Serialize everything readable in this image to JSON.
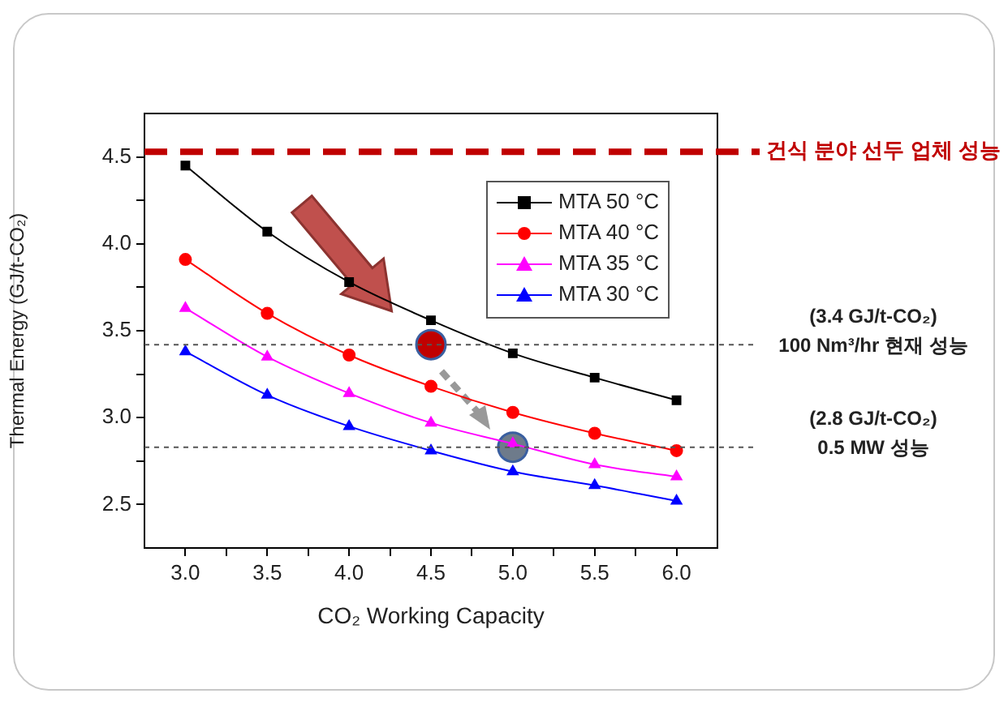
{
  "chart_data": {
    "type": "line",
    "xlabel": "CO₂ Working Capacity",
    "ylabel": "Thermal Energy (GJ/t-CO₂)",
    "x": [
      3.0,
      3.5,
      4.0,
      4.5,
      5.0,
      5.5,
      6.0
    ],
    "series": [
      {
        "name": "MTA 50 °C",
        "color": "#000000",
        "marker": "square",
        "values": [
          4.45,
          4.07,
          3.78,
          3.56,
          3.37,
          3.23,
          3.1
        ]
      },
      {
        "name": "MTA 40 °C",
        "color": "#ff0000",
        "marker": "circle",
        "values": [
          3.91,
          3.6,
          3.36,
          3.18,
          3.03,
          2.91,
          2.81
        ]
      },
      {
        "name": "MTA 35 °C",
        "color": "#ff00ff",
        "marker": "triangle",
        "values": [
          3.63,
          3.35,
          3.14,
          2.97,
          2.85,
          2.73,
          2.66
        ]
      },
      {
        "name": "MTA 30 °C",
        "color": "#0000ff",
        "marker": "triangle",
        "values": [
          3.38,
          3.13,
          2.95,
          2.81,
          2.69,
          2.61,
          2.52
        ]
      },
      {
        "type": "scatter",
        "x": [
          4.5,
          5.0
        ],
        "values": [
          3.42,
          2.83
        ],
        "colors": [
          "#c00000",
          "#6e7b8b"
        ],
        "marker": "circle"
      }
    ],
    "xlim": [
      2.75,
      6.25
    ],
    "xticks": [
      {
        "value": 3.0,
        "label": "3.0"
      },
      {
        "value": 3.25,
        "label": null
      },
      3.5,
      {
        "value": 3.75,
        "label": null
      },
      {
        "value": 4.0,
        "label": "4.0"
      },
      {
        "value": 4.25,
        "label": null
      },
      4.5,
      {
        "value": 4.75,
        "label": null
      },
      {
        "value": 5.0,
        "label": "5.0"
      },
      {
        "value": 5.25,
        "label": null
      },
      5.5,
      {
        "value": 5.75,
        "label": null
      },
      {
        "value": 6.0,
        "label": "6.0"
      }
    ],
    "ylim": [
      2.25,
      4.75
    ],
    "yticks": [
      2.5,
      {
        "value": 2.75,
        "label": null
      },
      {
        "value": 3.0,
        "label": "3.0"
      },
      {
        "value": 3.25,
        "label": null
      },
      3.5,
      {
        "value": 3.75,
        "label": null
      },
      {
        "value": 4.0,
        "label": "4.0"
      },
      {
        "value": 4.25,
        "label": null
      },
      4.5
    ],
    "ref_lines": [
      {
        "axis": "y",
        "value": 4.53,
        "label": "건식 분야 선두 업체 성능",
        "color": "#c00000",
        "line_style": "dashed"
      },
      {
        "axis": "y",
        "value": 3.42,
        "label": "(3.4 GJ/t-CO₂)\n100 Nm³/hr 현재 성능",
        "color": "#555555",
        "line_style": "dotted"
      },
      {
        "axis": "y",
        "value": 2.83,
        "label": "(2.8 GJ/t-CO₂)\n0.5 MW 성능",
        "color": "#555555",
        "line_style": "dotted"
      }
    ],
    "legend": "top right",
    "grid": false,
    "line_style": "solid"
  }
}
